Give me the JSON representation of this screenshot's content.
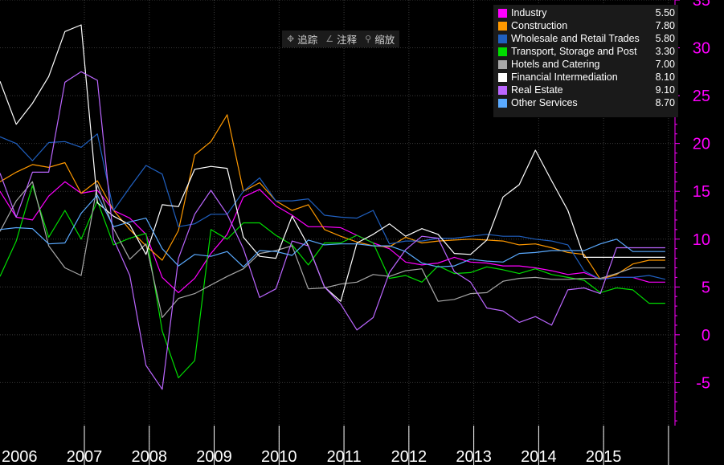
{
  "toolbar": {
    "trace_label": "追踪",
    "annotate_label": "注释",
    "zoom_label": "缩放"
  },
  "colors": {
    "background": "#000000",
    "axis_label": "#ff00ff",
    "grid": "#3a3a3a",
    "year_label": "#ffffff"
  },
  "chart_data": {
    "type": "line",
    "x_labels": [
      "2006",
      "2007",
      "2008",
      "2009",
      "2010",
      "2011",
      "2012",
      "2013",
      "2014",
      "2015"
    ],
    "yticks": [
      -5,
      0,
      5,
      10,
      15,
      20,
      25,
      30,
      35
    ],
    "ylim": [
      -9.5,
      35
    ],
    "xlim": [
      2005.75,
      2016.15
    ],
    "grid": true,
    "legend_position": "top-right",
    "series": [
      {
        "name": "Industry",
        "color": "#ff00ff",
        "last": "5.50",
        "x": [
          2005.75,
          2006,
          2006.25,
          2006.5,
          2006.75,
          2007,
          2007.25,
          2007.5,
          2007.75,
          2008,
          2008.25,
          2008.5,
          2008.75,
          2009,
          2009.25,
          2009.5,
          2009.75,
          2010,
          2010.25,
          2010.5,
          2010.75,
          2011,
          2011.25,
          2011.5,
          2011.75,
          2012,
          2012.25,
          2012.5,
          2012.75,
          2013,
          2013.25,
          2013.5,
          2013.75,
          2014,
          2014.25,
          2014.5,
          2014.75,
          2015,
          2015.25,
          2015.5,
          2015.75,
          2016
        ],
        "y": [
          15.0,
          12.3,
          12.0,
          14.5,
          16.0,
          14.8,
          15.1,
          13.0,
          12.2,
          10.5,
          6.0,
          4.4,
          5.9,
          8.5,
          10.5,
          14.4,
          15.2,
          13.5,
          12.5,
          11.3,
          11.3,
          11.2,
          10.4,
          9.6,
          9.0,
          7.6,
          7.3,
          7.5,
          8.1,
          7.6,
          7.5,
          7.2,
          7.2,
          7.0,
          6.7,
          6.3,
          6.5,
          5.8,
          6.0,
          6.0,
          5.5,
          5.5
        ]
      },
      {
        "name": "Construction",
        "color": "#ff9900",
        "last": "7.80",
        "x": [
          2005.75,
          2006,
          2006.25,
          2006.5,
          2006.75,
          2007,
          2007.25,
          2007.5,
          2007.75,
          2008,
          2008.25,
          2008.5,
          2008.75,
          2009,
          2009.25,
          2009.5,
          2009.75,
          2010,
          2010.25,
          2010.5,
          2010.75,
          2011,
          2011.25,
          2011.5,
          2011.75,
          2012,
          2012.25,
          2012.5,
          2012.75,
          2013,
          2013.25,
          2013.5,
          2013.75,
          2014,
          2014.25,
          2014.5,
          2014.75,
          2015,
          2015.25,
          2015.5,
          2015.75,
          2016
        ],
        "y": [
          16.0,
          17.0,
          17.8,
          17.5,
          18.0,
          14.8,
          16.1,
          13.0,
          11.0,
          9.3,
          7.8,
          10.9,
          18.8,
          20.2,
          23.0,
          15.0,
          15.9,
          14.0,
          13.0,
          13.6,
          11.0,
          10.3,
          9.7,
          9.3,
          9.2,
          10.2,
          9.6,
          9.8,
          9.9,
          10.0,
          9.9,
          9.8,
          9.4,
          9.5,
          9.1,
          8.6,
          8.4,
          5.8,
          6.3,
          7.4,
          7.8,
          7.8
        ]
      },
      {
        "name": "Wholesale and Retail Trades",
        "color": "#2060c0",
        "last": "5.80",
        "x": [
          2005.75,
          2006,
          2006.25,
          2006.5,
          2006.75,
          2007,
          2007.25,
          2007.5,
          2007.75,
          2008,
          2008.25,
          2008.5,
          2008.75,
          2009,
          2009.25,
          2009.5,
          2009.75,
          2010,
          2010.25,
          2010.5,
          2010.75,
          2011,
          2011.25,
          2011.5,
          2011.75,
          2012,
          2012.25,
          2012.5,
          2012.75,
          2013,
          2013.25,
          2013.5,
          2013.75,
          2014,
          2014.25,
          2014.5,
          2014.75,
          2015,
          2015.25,
          2015.5,
          2015.75,
          2016
        ],
        "y": [
          20.7,
          20.0,
          18.2,
          20.1,
          20.2,
          19.6,
          21.0,
          13.0,
          15.4,
          17.7,
          16.8,
          11.3,
          11.6,
          12.6,
          12.6,
          15.0,
          16.4,
          14.0,
          14.0,
          14.2,
          12.5,
          12.3,
          12.2,
          13.0,
          9.5,
          9.8,
          9.8,
          10.1,
          10.1,
          10.3,
          10.5,
          10.3,
          10.3,
          10.0,
          9.8,
          9.4,
          6.7,
          5.8,
          6.0,
          6.0,
          6.2,
          5.8
        ]
      },
      {
        "name": "Transport, Storage and Post",
        "color": "#00dd00",
        "last": "3.30",
        "x": [
          2005.75,
          2006,
          2006.25,
          2006.5,
          2006.75,
          2007,
          2007.25,
          2007.5,
          2007.75,
          2008,
          2008.25,
          2008.5,
          2008.75,
          2009,
          2009.25,
          2009.5,
          2009.75,
          2010,
          2010.25,
          2010.5,
          2010.75,
          2011,
          2011.25,
          2011.5,
          2011.75,
          2012,
          2012.25,
          2012.5,
          2012.75,
          2013,
          2013.25,
          2013.5,
          2013.75,
          2014,
          2014.25,
          2014.5,
          2014.75,
          2015,
          2015.25,
          2015.5,
          2015.75,
          2016
        ],
        "y": [
          6.1,
          9.8,
          15.6,
          10.2,
          13.0,
          10.0,
          14.0,
          9.4,
          10.1,
          10.6,
          0.4,
          -4.5,
          -2.7,
          11.0,
          10.0,
          11.7,
          11.7,
          10.4,
          9.4,
          7.3,
          9.6,
          9.6,
          10.4,
          9.6,
          5.9,
          6.2,
          5.5,
          7.2,
          6.4,
          6.5,
          7.1,
          6.8,
          6.4,
          6.9,
          6.3,
          6.0,
          5.7,
          4.4,
          4.9,
          4.7,
          3.3,
          3.3
        ]
      },
      {
        "name": "Hotels and Catering",
        "color": "#a8a8a8",
        "last": "7.00",
        "x": [
          2005.75,
          2006,
          2006.25,
          2006.5,
          2006.75,
          2007,
          2007.25,
          2007.5,
          2007.75,
          2008,
          2008.25,
          2008.5,
          2008.75,
          2009,
          2009.25,
          2009.5,
          2009.75,
          2010,
          2010.25,
          2010.5,
          2010.75,
          2011,
          2011.25,
          2011.5,
          2011.75,
          2012,
          2012.25,
          2012.5,
          2012.75,
          2013,
          2013.25,
          2013.5,
          2013.75,
          2014,
          2014.25,
          2014.5,
          2014.75,
          2015,
          2015.25,
          2015.5,
          2015.75,
          2016
        ],
        "y": [
          10.8,
          14.0,
          16.0,
          9.3,
          7.0,
          6.2,
          15.7,
          11.1,
          7.9,
          9.5,
          1.8,
          3.8,
          4.3,
          5.2,
          6.1,
          6.9,
          8.5,
          8.8,
          9.3,
          4.8,
          4.9,
          5.3,
          5.5,
          6.3,
          6.1,
          6.7,
          6.9,
          3.5,
          3.7,
          4.3,
          4.4,
          5.6,
          5.9,
          6.0,
          5.8,
          5.8,
          5.9,
          5.9,
          6.4,
          7.0,
          7.0,
          7.0
        ]
      },
      {
        "name": "Financial Intermediation",
        "color": "#ffffff",
        "last": "8.10",
        "x": [
          2005.75,
          2006,
          2006.25,
          2006.5,
          2006.75,
          2007,
          2007.25,
          2007.5,
          2007.75,
          2008,
          2008.25,
          2008.5,
          2008.75,
          2009,
          2009.25,
          2009.5,
          2009.75,
          2010,
          2010.25,
          2010.5,
          2010.75,
          2011,
          2011.25,
          2011.5,
          2011.75,
          2012,
          2012.25,
          2012.5,
          2012.75,
          2013,
          2013.25,
          2013.5,
          2013.75,
          2014,
          2014.25,
          2014.5,
          2014.75,
          2015,
          2015.25,
          2015.5,
          2015.75,
          2016
        ],
        "y": [
          26.5,
          22.0,
          24.2,
          27.0,
          31.7,
          32.4,
          13.8,
          12.4,
          11.5,
          8.4,
          13.6,
          13.4,
          17.3,
          17.6,
          17.4,
          10.2,
          8.2,
          8.0,
          12.4,
          9.3,
          5.0,
          3.5,
          9.6,
          10.5,
          11.6,
          10.3,
          11.1,
          10.5,
          8.5,
          8.4,
          9.9,
          14.4,
          15.7,
          19.3,
          16.1,
          13.0,
          8.1,
          8.1,
          8.1,
          8.1,
          8.1,
          8.1
        ]
      },
      {
        "name": "Real Estate",
        "color": "#bb66ff",
        "last": "9.10",
        "x": [
          2005.75,
          2006,
          2006.25,
          2006.5,
          2006.75,
          2007,
          2007.25,
          2007.5,
          2007.75,
          2008,
          2008.25,
          2008.5,
          2008.75,
          2009,
          2009.25,
          2009.5,
          2009.75,
          2010,
          2010.25,
          2010.5,
          2010.75,
          2011,
          2011.25,
          2011.5,
          2011.75,
          2012,
          2012.25,
          2012.5,
          2012.75,
          2013,
          2013.25,
          2013.5,
          2013.75,
          2014,
          2014.25,
          2014.5,
          2014.75,
          2015,
          2015.25,
          2015.5,
          2015.75,
          2016
        ],
        "y": [
          16.9,
          12.3,
          17.0,
          17.0,
          26.4,
          27.5,
          26.6,
          10.0,
          6.2,
          -3.2,
          -5.7,
          8.0,
          12.6,
          15.1,
          12.6,
          9.0,
          3.9,
          4.8,
          9.8,
          9.3,
          5.0,
          3.2,
          0.5,
          1.8,
          6.5,
          8.9,
          10.3,
          10.1,
          6.6,
          5.5,
          2.8,
          2.5,
          1.3,
          1.9,
          1.0,
          4.7,
          4.9,
          4.3,
          9.1,
          9.1,
          9.1,
          9.1
        ]
      },
      {
        "name": "Other Services",
        "color": "#5aaaff",
        "last": "8.70",
        "x": [
          2005.75,
          2006,
          2006.25,
          2006.5,
          2006.75,
          2007,
          2007.25,
          2007.5,
          2007.75,
          2008,
          2008.25,
          2008.5,
          2008.75,
          2009,
          2009.25,
          2009.5,
          2009.75,
          2010,
          2010.25,
          2010.5,
          2010.75,
          2011,
          2011.25,
          2011.5,
          2011.75,
          2012,
          2012.25,
          2012.5,
          2012.75,
          2013,
          2013.25,
          2013.5,
          2013.75,
          2014,
          2014.25,
          2014.5,
          2014.75,
          2015,
          2015.25,
          2015.5,
          2015.75,
          2016
        ],
        "y": [
          11.0,
          11.2,
          11.1,
          9.5,
          9.6,
          12.7,
          14.6,
          11.3,
          11.8,
          12.2,
          9.0,
          7.2,
          8.4,
          8.2,
          8.7,
          7.1,
          8.8,
          8.7,
          8.3,
          9.9,
          9.4,
          9.5,
          9.5,
          9.3,
          9.3,
          8.7,
          7.5,
          7.1,
          7.2,
          7.9,
          7.7,
          7.6,
          8.5,
          8.6,
          8.8,
          8.8,
          8.8,
          9.5,
          10.0,
          8.7,
          8.7,
          8.7
        ]
      }
    ]
  }
}
